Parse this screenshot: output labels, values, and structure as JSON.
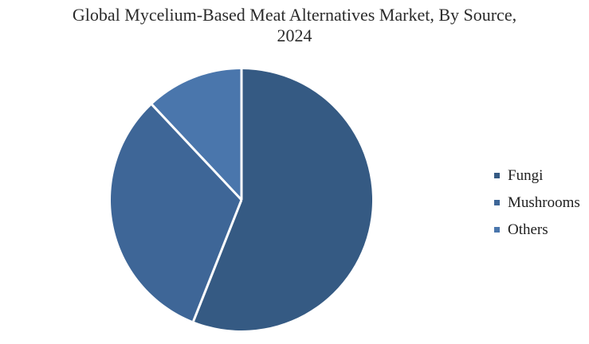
{
  "chart_data": {
    "type": "pie",
    "title": "Global Mycelium-Based Meat Alternatives Market, By Source, 2024",
    "categories": [
      "Fungi",
      "Mushrooms",
      "Others"
    ],
    "values": [
      56,
      32,
      12
    ],
    "colors": [
      "#355a83",
      "#3e6697",
      "#4a76ac"
    ],
    "slice_border_color": "#ffffff",
    "start_angle_deg": 0,
    "direction": "clockwise",
    "legend_position": "right",
    "background": "#ffffff"
  }
}
